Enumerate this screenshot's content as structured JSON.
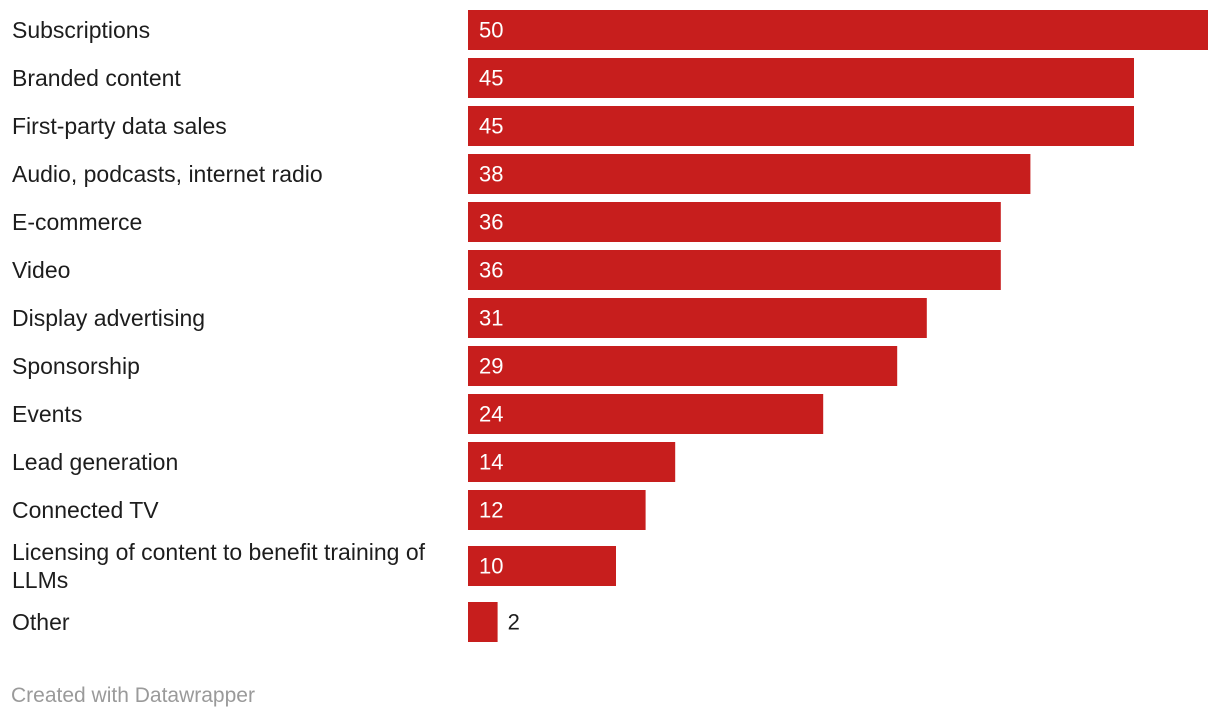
{
  "chart_data": {
    "type": "bar",
    "orientation": "horizontal",
    "categories": [
      "Subscriptions",
      "Branded content",
      "First-party data sales",
      "Audio, podcasts, internet radio",
      "E-commerce",
      "Video",
      "Display advertising",
      "Sponsorship",
      "Events",
      "Lead generation",
      "Connected TV",
      "Licensing of content to benefit training of LLMs",
      "Other"
    ],
    "values": [
      50,
      45,
      45,
      38,
      36,
      36,
      31,
      29,
      24,
      14,
      12,
      10,
      2
    ],
    "xlim": [
      0,
      50
    ],
    "grid": false,
    "title": "",
    "xlabel": "",
    "ylabel": ""
  },
  "colors": {
    "bar": "#c71e1d",
    "label_inside": "#ffffff",
    "label_outside": "#1d1d1d"
  },
  "footer": {
    "credit": "Created with Datawrapper"
  }
}
